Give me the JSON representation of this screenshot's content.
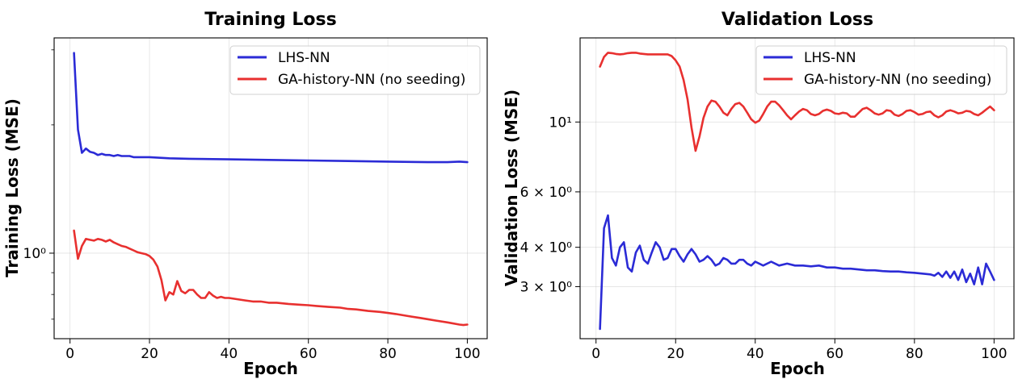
{
  "chart_data": [
    {
      "type": "line",
      "title": "Training Loss",
      "xlabel": "Epoch",
      "ylabel": "Training Loss (MSE)",
      "yscale": "log",
      "xlim": [
        -4,
        105
      ],
      "ylim": [
        0.63,
        3.2
      ],
      "grid": true,
      "legend_position": "top-right",
      "x_ticks": [
        0,
        20,
        40,
        60,
        80,
        100
      ],
      "x_tick_labels": [
        "0",
        "20",
        "40",
        "60",
        "80",
        "100"
      ],
      "y_ticks": [
        1.0
      ],
      "y_tick_labels": [
        "10⁰"
      ],
      "y_minor_ticks": [
        0.7,
        0.8,
        0.9,
        2.0,
        3.0
      ],
      "series": [
        {
          "name": "LHS-NN",
          "color": "#2b2bd6",
          "x": [
            1,
            2,
            3,
            4,
            5,
            6,
            7,
            8,
            9,
            10,
            11,
            12,
            13,
            14,
            15,
            16,
            17,
            18,
            19,
            20,
            25,
            30,
            40,
            50,
            60,
            70,
            80,
            90,
            95,
            98,
            100
          ],
          "values": [
            2.95,
            1.95,
            1.72,
            1.76,
            1.73,
            1.72,
            1.7,
            1.71,
            1.7,
            1.7,
            1.69,
            1.7,
            1.69,
            1.69,
            1.69,
            1.68,
            1.68,
            1.68,
            1.68,
            1.68,
            1.67,
            1.665,
            1.66,
            1.655,
            1.65,
            1.645,
            1.64,
            1.635,
            1.635,
            1.64,
            1.635
          ]
        },
        {
          "name": "GA-history-NN (no seeding)",
          "color": "#e8302f",
          "x": [
            1,
            2,
            3,
            4,
            5,
            6,
            7,
            8,
            9,
            10,
            11,
            12,
            13,
            14,
            15,
            16,
            17,
            18,
            19,
            20,
            21,
            22,
            23,
            24,
            25,
            26,
            27,
            28,
            29,
            30,
            31,
            32,
            33,
            34,
            35,
            36,
            37,
            38,
            39,
            40,
            42,
            44,
            46,
            48,
            50,
            52,
            55,
            58,
            60,
            62,
            65,
            68,
            70,
            72,
            75,
            78,
            80,
            82,
            85,
            88,
            90,
            92,
            95,
            98,
            99,
            100
          ],
          "values": [
            1.13,
            0.97,
            1.04,
            1.08,
            1.075,
            1.07,
            1.08,
            1.075,
            1.065,
            1.075,
            1.06,
            1.05,
            1.04,
            1.035,
            1.025,
            1.015,
            1.005,
            1.0,
            0.995,
            0.985,
            0.965,
            0.93,
            0.865,
            0.775,
            0.81,
            0.8,
            0.86,
            0.815,
            0.805,
            0.82,
            0.82,
            0.8,
            0.785,
            0.785,
            0.81,
            0.795,
            0.785,
            0.79,
            0.785,
            0.785,
            0.78,
            0.775,
            0.77,
            0.77,
            0.765,
            0.765,
            0.76,
            0.757,
            0.755,
            0.752,
            0.748,
            0.745,
            0.74,
            0.738,
            0.732,
            0.728,
            0.724,
            0.72,
            0.712,
            0.705,
            0.7,
            0.695,
            0.688,
            0.68,
            0.678,
            0.68
          ]
        }
      ]
    },
    {
      "type": "line",
      "title": "Validation Loss",
      "xlabel": "Epoch",
      "ylabel": "Validation Loss (MSE)",
      "yscale": "log",
      "xlim": [
        -4,
        105
      ],
      "ylim": [
        2.05,
        18.5
      ],
      "grid": true,
      "legend_position": "top-right",
      "x_ticks": [
        0,
        20,
        40,
        60,
        80,
        100
      ],
      "x_tick_labels": [
        "0",
        "20",
        "40",
        "60",
        "80",
        "100"
      ],
      "y_ticks": [
        3,
        4,
        6,
        10
      ],
      "y_tick_labels": [
        "3 × 10⁰",
        "4 × 10⁰",
        "6 × 10⁰",
        "10¹"
      ],
      "series": [
        {
          "name": "LHS-NN",
          "color": "#2b2bd6",
          "x": [
            1,
            2,
            3,
            4,
            5,
            6,
            7,
            8,
            9,
            10,
            11,
            12,
            13,
            14,
            15,
            16,
            17,
            18,
            19,
            20,
            21,
            22,
            23,
            24,
            25,
            26,
            27,
            28,
            29,
            30,
            31,
            32,
            33,
            34,
            35,
            36,
            37,
            38,
            39,
            40,
            42,
            44,
            46,
            48,
            50,
            52,
            54,
            56,
            58,
            60,
            62,
            64,
            66,
            68,
            70,
            72,
            74,
            76,
            78,
            80,
            82,
            84,
            85,
            86,
            87,
            88,
            89,
            90,
            91,
            92,
            93,
            94,
            95,
            96,
            97,
            98,
            99,
            100
          ],
          "values": [
            2.2,
            4.6,
            5.05,
            3.7,
            3.5,
            4.0,
            4.15,
            3.45,
            3.35,
            3.85,
            4.05,
            3.65,
            3.55,
            3.85,
            4.15,
            4.0,
            3.65,
            3.7,
            3.95,
            3.95,
            3.75,
            3.6,
            3.8,
            3.95,
            3.8,
            3.6,
            3.65,
            3.75,
            3.65,
            3.5,
            3.55,
            3.7,
            3.65,
            3.55,
            3.55,
            3.65,
            3.65,
            3.55,
            3.5,
            3.6,
            3.5,
            3.6,
            3.5,
            3.55,
            3.5,
            3.5,
            3.48,
            3.5,
            3.45,
            3.45,
            3.42,
            3.42,
            3.4,
            3.38,
            3.38,
            3.36,
            3.35,
            3.35,
            3.33,
            3.32,
            3.3,
            3.28,
            3.25,
            3.32,
            3.22,
            3.35,
            3.2,
            3.35,
            3.15,
            3.4,
            3.1,
            3.3,
            3.05,
            3.45,
            3.05,
            3.55,
            3.35,
            3.15
          ]
        },
        {
          "name": "GA-history-NN (no seeding)",
          "color": "#e8302f",
          "x": [
            1,
            2,
            3,
            4,
            5,
            6,
            7,
            8,
            9,
            10,
            11,
            12,
            13,
            14,
            15,
            16,
            17,
            18,
            19,
            20,
            21,
            22,
            23,
            24,
            25,
            26,
            27,
            28,
            29,
            30,
            31,
            32,
            33,
            34,
            35,
            36,
            37,
            38,
            39,
            40,
            41,
            42,
            43,
            44,
            45,
            46,
            47,
            48,
            49,
            50,
            51,
            52,
            53,
            54,
            55,
            56,
            57,
            58,
            59,
            60,
            61,
            62,
            63,
            64,
            65,
            66,
            67,
            68,
            69,
            70,
            71,
            72,
            73,
            74,
            75,
            76,
            77,
            78,
            79,
            80,
            81,
            82,
            83,
            84,
            85,
            86,
            87,
            88,
            89,
            90,
            91,
            92,
            93,
            94,
            95,
            96,
            97,
            98,
            99,
            100
          ],
          "values": [
            15.0,
            16.1,
            16.6,
            16.55,
            16.45,
            16.4,
            16.45,
            16.55,
            16.6,
            16.6,
            16.5,
            16.45,
            16.4,
            16.4,
            16.4,
            16.4,
            16.4,
            16.4,
            16.2,
            15.7,
            15.0,
            13.6,
            11.8,
            9.6,
            8.1,
            9.0,
            10.3,
            11.2,
            11.7,
            11.6,
            11.2,
            10.7,
            10.5,
            11.0,
            11.4,
            11.5,
            11.2,
            10.7,
            10.2,
            9.95,
            10.1,
            10.6,
            11.2,
            11.6,
            11.6,
            11.3,
            10.9,
            10.5,
            10.2,
            10.5,
            10.8,
            11.0,
            10.9,
            10.6,
            10.5,
            10.6,
            10.85,
            10.95,
            10.85,
            10.65,
            10.6,
            10.7,
            10.65,
            10.4,
            10.4,
            10.7,
            11.0,
            11.1,
            10.9,
            10.65,
            10.55,
            10.65,
            10.9,
            10.85,
            10.55,
            10.45,
            10.6,
            10.85,
            10.9,
            10.75,
            10.55,
            10.6,
            10.75,
            10.8,
            10.5,
            10.35,
            10.5,
            10.8,
            10.9,
            10.8,
            10.65,
            10.7,
            10.85,
            10.8,
            10.6,
            10.5,
            10.7,
            10.95,
            11.2,
            10.9
          ]
        }
      ]
    }
  ]
}
